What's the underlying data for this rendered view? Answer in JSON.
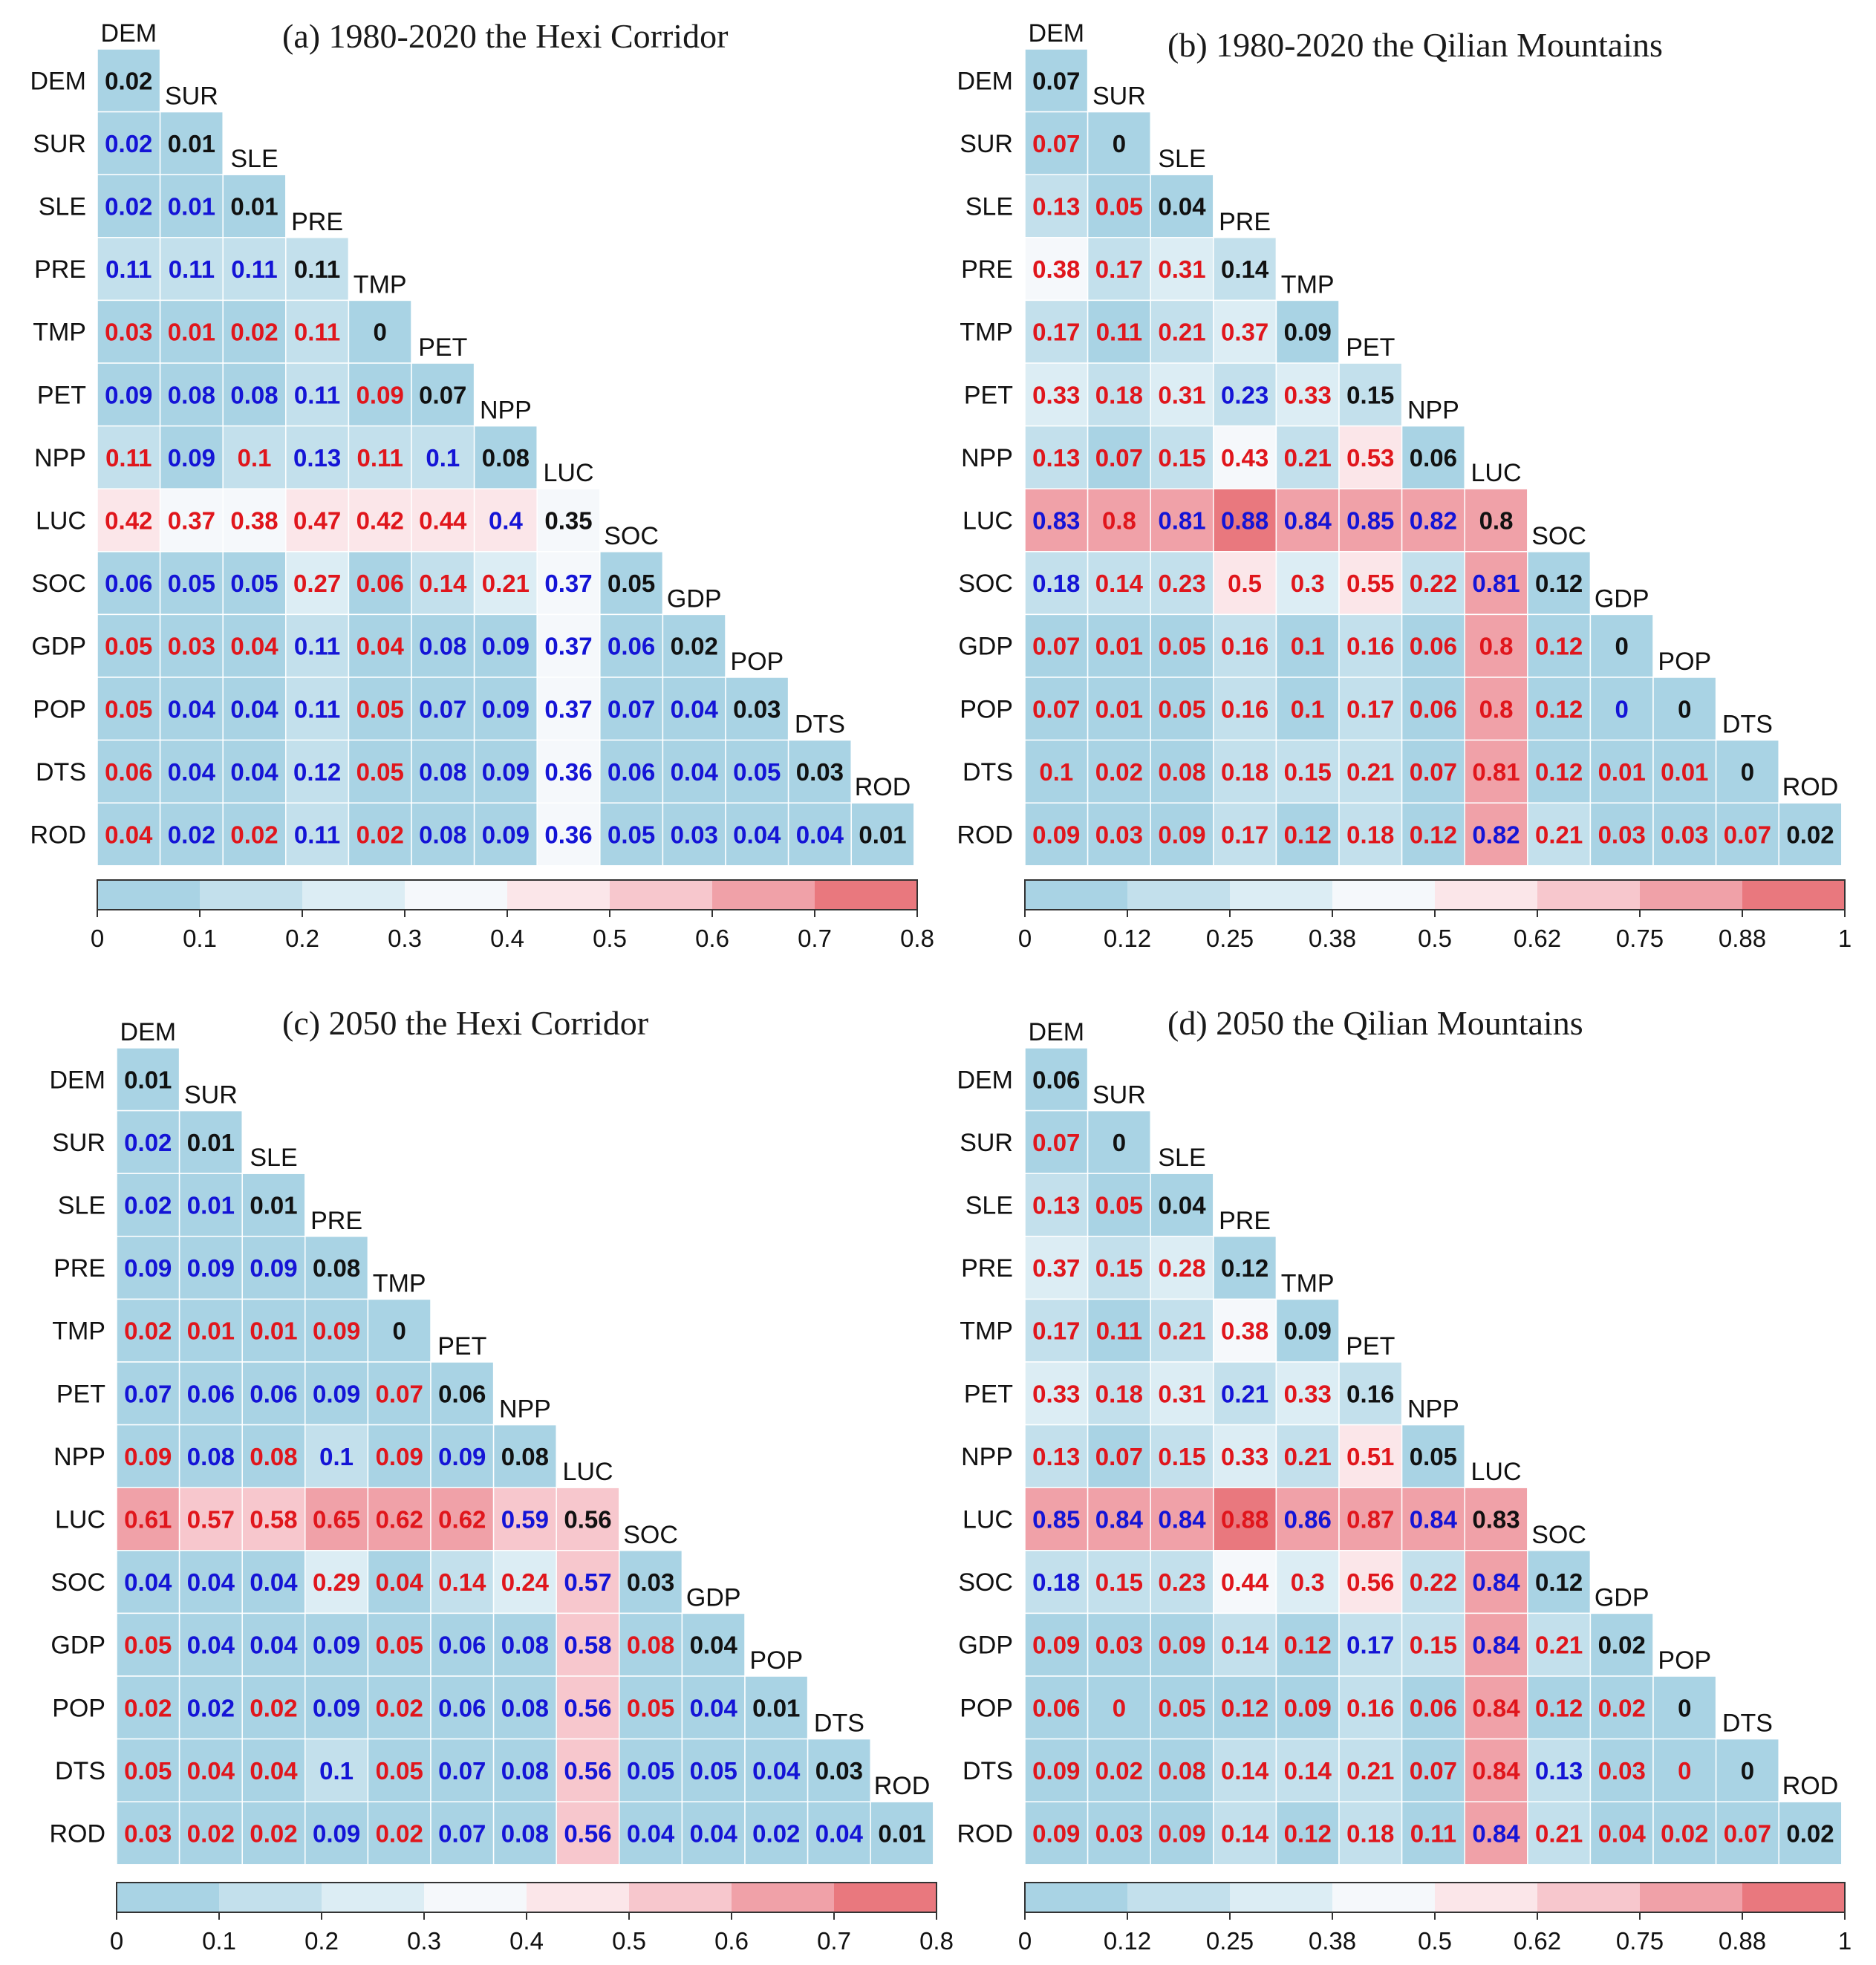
{
  "figure": {
    "variables": [
      "DEM",
      "SUR",
      "SLE",
      "PRE",
      "TMP",
      "PET",
      "NPP",
      "LUC",
      "SOC",
      "GDP",
      "POP",
      "DTS",
      "ROD"
    ],
    "text_colors": {
      "r": "#e0161c",
      "b": "#1414d6",
      "k": "#111111"
    },
    "palette": [
      "#a9d3e4",
      "#c3e0ec",
      "#dcedf4",
      "#f5f8fb",
      "#fbe6e9",
      "#f7c7cd",
      "#f0a1a8",
      "#e9787e"
    ]
  },
  "chart_data": [
    {
      "type": "heatmap",
      "title": "(a) 1980-2020  the Hexi Corridor",
      "values": [
        [
          0.02
        ],
        [
          0.02,
          0.01
        ],
        [
          0.02,
          0.01,
          0.01
        ],
        [
          0.11,
          0.11,
          0.11,
          0.11
        ],
        [
          0.03,
          0.01,
          0.02,
          0.11,
          0
        ],
        [
          0.09,
          0.08,
          0.08,
          0.11,
          0.09,
          0.07
        ],
        [
          0.11,
          0.09,
          0.1,
          0.13,
          0.11,
          0.1,
          0.08
        ],
        [
          0.42,
          0.37,
          0.38,
          0.47,
          0.42,
          0.44,
          0.4,
          0.35
        ],
        [
          0.06,
          0.05,
          0.05,
          0.27,
          0.06,
          0.14,
          0.21,
          0.37,
          0.05
        ],
        [
          0.05,
          0.03,
          0.04,
          0.11,
          0.04,
          0.08,
          0.09,
          0.37,
          0.06,
          0.02
        ],
        [
          0.05,
          0.04,
          0.04,
          0.11,
          0.05,
          0.07,
          0.09,
          0.37,
          0.07,
          0.04,
          0.03
        ],
        [
          0.06,
          0.04,
          0.04,
          0.12,
          0.05,
          0.08,
          0.09,
          0.36,
          0.06,
          0.04,
          0.05,
          0.03
        ],
        [
          0.04,
          0.02,
          0.02,
          0.11,
          0.02,
          0.08,
          0.09,
          0.36,
          0.05,
          0.03,
          0.04,
          0.04,
          0.01
        ]
      ],
      "colors": [
        "k",
        "bk",
        "bbk",
        "bbbk",
        "rrrrk",
        "bbbbrk",
        "rbrbrbk",
        "rrrrrrbk",
        "bbbrrrrbk",
        "rrrbrbbbbk",
        "rbbbrbbbbbk",
        "rbbbrbbbbbbk",
        "rbrbrbbbbbbbk"
      ],
      "colorbar": {
        "ticks": [
          "0",
          "0.1",
          "0.2",
          "0.3",
          "0.4",
          "0.5",
          "0.6",
          "0.7",
          "0.8"
        ],
        "range": [
          0,
          0.8
        ]
      }
    },
    {
      "type": "heatmap",
      "title": "(b) 1980-2020  the Qilian Mountains",
      "values": [
        [
          0.07
        ],
        [
          0.07,
          0
        ],
        [
          0.13,
          0.05,
          0.04
        ],
        [
          0.38,
          0.17,
          0.31,
          0.14
        ],
        [
          0.17,
          0.11,
          0.21,
          0.37,
          0.09
        ],
        [
          0.33,
          0.18,
          0.31,
          0.23,
          0.33,
          0.15
        ],
        [
          0.13,
          0.07,
          0.15,
          0.43,
          0.21,
          0.53,
          0.06
        ],
        [
          0.83,
          0.8,
          0.81,
          0.88,
          0.84,
          0.85,
          0.82,
          0.8
        ],
        [
          0.18,
          0.14,
          0.23,
          0.5,
          0.3,
          0.55,
          0.22,
          0.81,
          0.12
        ],
        [
          0.07,
          0.01,
          0.05,
          0.16,
          0.1,
          0.16,
          0.06,
          0.8,
          0.12,
          0
        ],
        [
          0.07,
          0.01,
          0.05,
          0.16,
          0.1,
          0.17,
          0.06,
          0.8,
          0.12,
          0,
          0
        ],
        [
          0.1,
          0.02,
          0.08,
          0.18,
          0.15,
          0.21,
          0.07,
          0.81,
          0.12,
          0.01,
          0.01,
          0
        ],
        [
          0.09,
          0.03,
          0.09,
          0.17,
          0.12,
          0.18,
          0.12,
          0.82,
          0.21,
          0.03,
          0.03,
          0.07,
          0.02
        ]
      ],
      "colors": [
        "k",
        "rk",
        "rrk",
        "rrrk",
        "rrrrk",
        "rrrbrk",
        "rrrrrrk",
        "brbbbbbk",
        "brrrrrrbk",
        "rrrrrrrrrk",
        "rrrrrrrrrbk",
        "rrrrrrrrrrrk",
        "rrrrrrrbrrrrk"
      ],
      "colorbar": {
        "ticks": [
          "0",
          "0.12",
          "0.25",
          "0.38",
          "0.5",
          "0.62",
          "0.75",
          "0.88",
          "1"
        ],
        "range": [
          0,
          1
        ]
      }
    },
    {
      "type": "heatmap",
      "title": "(c) 2050 the Hexi Corridor",
      "values": [
        [
          0.01
        ],
        [
          0.02,
          0.01
        ],
        [
          0.02,
          0.01,
          0.01
        ],
        [
          0.09,
          0.09,
          0.09,
          0.08
        ],
        [
          0.02,
          0.01,
          0.01,
          0.09,
          0
        ],
        [
          0.07,
          0.06,
          0.06,
          0.09,
          0.07,
          0.06
        ],
        [
          0.09,
          0.08,
          0.08,
          0.1,
          0.09,
          0.09,
          0.08
        ],
        [
          0.61,
          0.57,
          0.58,
          0.65,
          0.62,
          0.62,
          0.59,
          0.56
        ],
        [
          0.04,
          0.04,
          0.04,
          0.29,
          0.04,
          0.14,
          0.24,
          0.57,
          0.03
        ],
        [
          0.05,
          0.04,
          0.04,
          0.09,
          0.05,
          0.06,
          0.08,
          0.58,
          0.08,
          0.04
        ],
        [
          0.02,
          0.02,
          0.02,
          0.09,
          0.02,
          0.06,
          0.08,
          0.56,
          0.05,
          0.04,
          0.01
        ],
        [
          0.05,
          0.04,
          0.04,
          0.1,
          0.05,
          0.07,
          0.08,
          0.56,
          0.05,
          0.05,
          0.04,
          0.03
        ],
        [
          0.03,
          0.02,
          0.02,
          0.09,
          0.02,
          0.07,
          0.08,
          0.56,
          0.04,
          0.04,
          0.02,
          0.04,
          0.01
        ]
      ],
      "colors": [
        "k",
        "bk",
        "bbk",
        "bbbk",
        "rrrrk",
        "bbbbrk",
        "rbrbrbk",
        "rrrrrrbk",
        "bbbrrrrbk",
        "rbbbrbbbrk",
        "rbrbrbbbrbk",
        "rrrbrbbbbbbk",
        "rrrbrbbbbbbbk"
      ],
      "colorbar": {
        "ticks": [
          "0",
          "0.1",
          "0.2",
          "0.3",
          "0.4",
          "0.5",
          "0.6",
          "0.7",
          "0.8"
        ],
        "range": [
          0,
          0.8
        ]
      }
    },
    {
      "type": "heatmap",
      "title": "(d) 2050  the Qilian Mountains",
      "values": [
        [
          0.06
        ],
        [
          0.07,
          0
        ],
        [
          0.13,
          0.05,
          0.04
        ],
        [
          0.37,
          0.15,
          0.28,
          0.12
        ],
        [
          0.17,
          0.11,
          0.21,
          0.38,
          0.09
        ],
        [
          0.33,
          0.18,
          0.31,
          0.21,
          0.33,
          0.16
        ],
        [
          0.13,
          0.07,
          0.15,
          0.33,
          0.21,
          0.51,
          0.05
        ],
        [
          0.85,
          0.84,
          0.84,
          0.88,
          0.86,
          0.87,
          0.84,
          0.83
        ],
        [
          0.18,
          0.15,
          0.23,
          0.44,
          0.3,
          0.56,
          0.22,
          0.84,
          0.12
        ],
        [
          0.09,
          0.03,
          0.09,
          0.14,
          0.12,
          0.17,
          0.15,
          0.84,
          0.21,
          0.02
        ],
        [
          0.06,
          0,
          0.05,
          0.12,
          0.09,
          0.16,
          0.06,
          0.84,
          0.12,
          0.02,
          0
        ],
        [
          0.09,
          0.02,
          0.08,
          0.14,
          0.14,
          0.21,
          0.07,
          0.84,
          0.13,
          0.03,
          0,
          0
        ],
        [
          0.09,
          0.03,
          0.09,
          0.14,
          0.12,
          0.18,
          0.11,
          0.84,
          0.21,
          0.04,
          0.02,
          0.07,
          0.02
        ]
      ],
      "colors": [
        "k",
        "rk",
        "rrk",
        "rrrk",
        "rrrrk",
        "rrrbrk",
        "rrrrrrk",
        "bbbrbrbk",
        "brrrrrrbk",
        "rrrrrbrbrk",
        "rrrrrrrrrrk",
        "rrrrrrrrbrrk",
        "rrrrrrrbrrrrk"
      ],
      "colorbar": {
        "ticks": [
          "0",
          "0.12",
          "0.25",
          "0.38",
          "0.5",
          "0.62",
          "0.75",
          "0.88",
          "1"
        ],
        "range": [
          0,
          1
        ]
      }
    }
  ]
}
